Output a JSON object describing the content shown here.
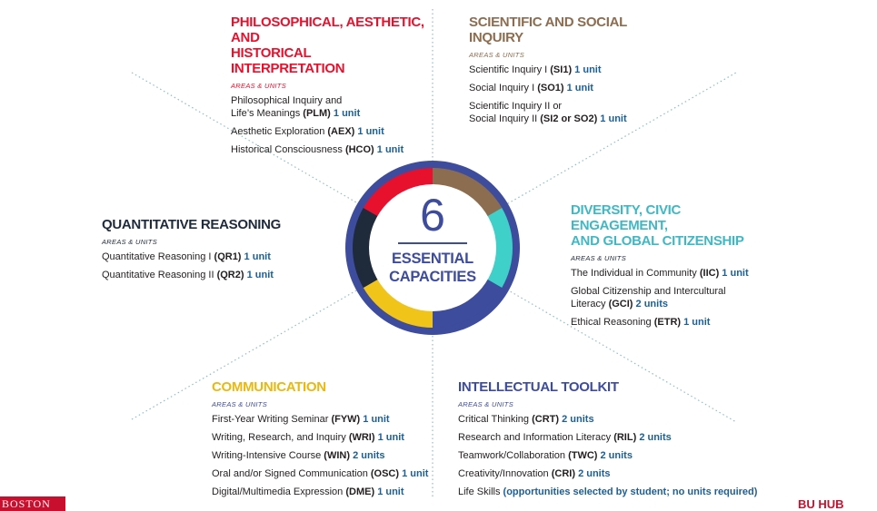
{
  "center": {
    "number": "6",
    "label": "ESSENTIAL\nCAPACITIES"
  },
  "wheel_colors": [
    "#8c6d4f",
    "#3fd0c9",
    "#3d4c9c",
    "#f0c419",
    "#1f2a3a",
    "#e8112d"
  ],
  "sections": {
    "philosophical": {
      "heading": "PHILOSOPHICAL, AESTHETIC, AND\nHISTORICAL INTERPRETATION",
      "color": "#e8112d",
      "sub": "AREAS & UNITS",
      "items": [
        {
          "text": "Philosophical Inquiry and\nLife’s Meanings ",
          "code": "(PLM)",
          "units": "1 unit"
        },
        {
          "text": "Aesthetic Exploration ",
          "code": "(AEX)",
          "units": "1 unit"
        },
        {
          "text": "Historical Consciousness ",
          "code": "(HCO)",
          "units": "1 unit"
        }
      ]
    },
    "scientific": {
      "heading": "SCIENTIFIC AND SOCIAL INQUIRY",
      "color": "#8c6d4f",
      "sub": "AREAS & UNITS",
      "items": [
        {
          "text": "Scientific Inquiry I ",
          "code": "(SI1)",
          "units": "1 unit"
        },
        {
          "text": "Social Inquiry I ",
          "code": "(SO1)",
          "units": "1 unit"
        },
        {
          "text": "Scientific Inquiry II or\nSocial Inquiry II ",
          "code": "(SI2 or SO2)",
          "units": "1 unit"
        }
      ]
    },
    "quantitative": {
      "heading": "QUANTITATIVE REASONING",
      "color": "#1f2a3a",
      "sub": "AREAS & UNITS",
      "items": [
        {
          "text": "Quantitative Reasoning I ",
          "code": "(QR1)",
          "units": "1 unit"
        },
        {
          "text": "Quantitative Reasoning II ",
          "code": "(QR2)",
          "units": "1 unit"
        }
      ]
    },
    "diversity": {
      "heading": "DIVERSITY, CIVIC ENGAGEMENT,\nAND GLOBAL CITIZENSHIP",
      "color": "#3fb8c4",
      "sub": "AREAS & UNITS",
      "items": [
        {
          "text": "The Individual in Community ",
          "code": "(IIC)",
          "units": "1 unit"
        },
        {
          "text": "Global Citizenship and Intercultural\nLiteracy ",
          "code": "(GCI)",
          "units": "2 units"
        },
        {
          "text": "Ethical Reasoning ",
          "code": "(ETR)",
          "units": "1 unit"
        }
      ]
    },
    "communication": {
      "heading": "COMMUNICATION",
      "color": "#e8b90f",
      "sub": "AREAS & UNITS",
      "items": [
        {
          "text": "First-Year Writing Seminar ",
          "code": "(FYW)",
          "units": "1 unit"
        },
        {
          "text": "Writing, Research, and Inquiry ",
          "code": "(WRI)",
          "units": "1 unit"
        },
        {
          "text": "Writing-Intensive Course ",
          "code": "(WIN)",
          "units": "2 units"
        },
        {
          "text": "Oral and/or Signed Communication ",
          "code": "(OSC)",
          "units": "1 unit"
        },
        {
          "text": "Digital/Multimedia Expression ",
          "code": "(DME)",
          "units": "1 unit"
        }
      ]
    },
    "toolkit": {
      "heading": "INTELLECTUAL TOOLKIT",
      "color": "#3d4c9c",
      "sub": "AREAS & UNITS",
      "items": [
        {
          "text": "Critical Thinking ",
          "code": "(CRT)",
          "units": "2 units"
        },
        {
          "text": "Research and Information Literacy ",
          "code": "(RIL)",
          "units": "2 units"
        },
        {
          "text": "Teamwork/Collaboration ",
          "code": "(TWC)",
          "units": "2 units"
        },
        {
          "text": "Creativity/Innovation ",
          "code": "(CRI)",
          "units": "2 units"
        },
        {
          "text": "Life Skills ",
          "code": "",
          "units": "(opportunities selected by student; no units required)"
        }
      ]
    }
  },
  "logos": {
    "left": "BOSTON",
    "right": "BU HUB"
  }
}
